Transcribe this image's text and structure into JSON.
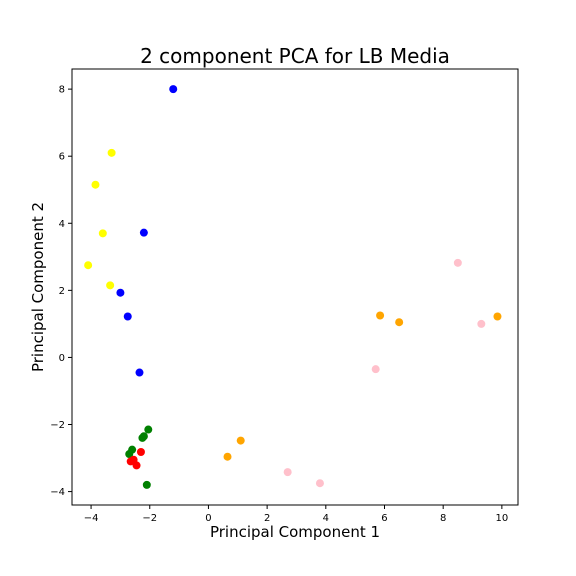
{
  "chart_data": {
    "type": "scatter",
    "title": "2 component PCA for LB Media",
    "xlabel": "Principal Component 1",
    "ylabel": "Principal Component 2",
    "xlim": [
      -4.65,
      10.55
    ],
    "ylim": [
      -4.4,
      8.6
    ],
    "xticks": [
      -4,
      -2,
      0,
      2,
      4,
      6,
      8,
      10
    ],
    "yticks": [
      -4,
      -2,
      0,
      2,
      4,
      6,
      8
    ],
    "grid": false,
    "legend": "none",
    "series": [
      {
        "color": "#0000ff",
        "points": [
          [
            -1.2,
            8.0
          ],
          [
            -2.2,
            3.72
          ],
          [
            -3.0,
            1.93
          ],
          [
            -2.75,
            1.22
          ],
          [
            -2.35,
            -0.45
          ]
        ]
      },
      {
        "color": "#ffff00",
        "points": [
          [
            -3.3,
            6.1
          ],
          [
            -3.85,
            5.15
          ],
          [
            -3.6,
            3.7
          ],
          [
            -4.1,
            2.75
          ],
          [
            -3.35,
            2.15
          ]
        ]
      },
      {
        "color": "#008000",
        "points": [
          [
            -2.05,
            -2.15
          ],
          [
            -2.2,
            -2.35
          ],
          [
            -2.25,
            -2.4
          ],
          [
            -2.6,
            -2.75
          ],
          [
            -2.7,
            -2.88
          ],
          [
            -2.1,
            -3.8
          ]
        ]
      },
      {
        "color": "#ff0000",
        "points": [
          [
            -2.3,
            -2.82
          ],
          [
            -2.55,
            -3.05
          ],
          [
            -2.65,
            -3.1
          ],
          [
            -2.45,
            -3.22
          ]
        ]
      },
      {
        "color": "#ffa500",
        "points": [
          [
            5.85,
            1.25
          ],
          [
            6.5,
            1.05
          ],
          [
            9.85,
            1.22
          ],
          [
            1.1,
            -2.48
          ],
          [
            0.65,
            -2.96
          ]
        ]
      },
      {
        "color": "#ffc0cb",
        "points": [
          [
            8.5,
            2.82
          ],
          [
            9.3,
            1.0
          ],
          [
            5.7,
            -0.35
          ],
          [
            2.7,
            -3.42
          ],
          [
            3.8,
            -3.75
          ]
        ]
      }
    ]
  }
}
